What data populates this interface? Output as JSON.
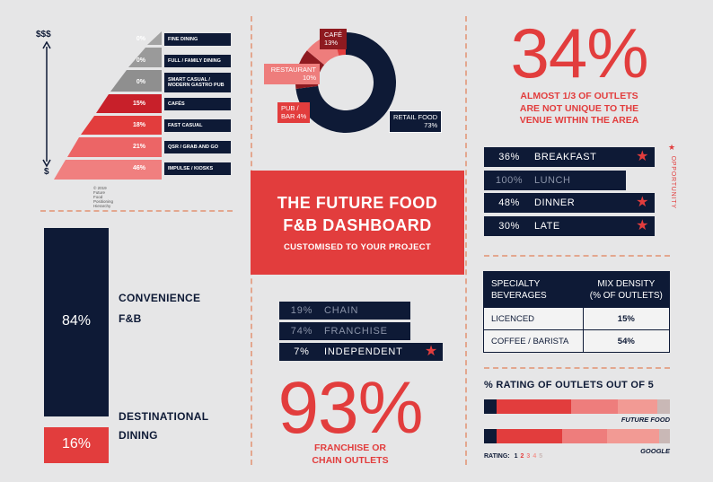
{
  "colors": {
    "navy": "#0e1a36",
    "red": "#e23d3d",
    "coral": "#ee7d7c",
    "grey": "#9a9a9a",
    "background": "#e6e6e7"
  },
  "pyramid": {
    "top_label": "$$$",
    "bottom_label": "$",
    "credit": "© 2019 Future Food Positioning Hierarchy",
    "tiers": [
      {
        "pct": "0%",
        "label": "Fine Dining"
      },
      {
        "pct": "0%",
        "label": "Full / Family Dining"
      },
      {
        "pct": "0%",
        "label_1": "Smart Casual /",
        "label_2": "Modern Gastro Pub"
      },
      {
        "pct": "15%",
        "label": "Cafés"
      },
      {
        "pct": "18%",
        "label": "Fast Casual"
      },
      {
        "pct": "21%",
        "label": "QSR / Grab and Go"
      },
      {
        "pct": "46%",
        "label": "Impulse / Kiosks"
      }
    ]
  },
  "chart_data": {
    "type": "pie",
    "title": "Venue type",
    "categories": [
      "Retail Food",
      "Café",
      "Restaurant",
      "Pub / Bar"
    ],
    "values": [
      73,
      13,
      10,
      4
    ],
    "labels": {
      "retail_1": "RETAIL FOOD",
      "retail_2": "73%",
      "cafe_1": "CAFÉ",
      "cafe_2": "13%",
      "restaurant_1": "RESTAURANT",
      "restaurant_2": "10%",
      "pub_1": "PUB /",
      "pub_2": "BAR 4%"
    }
  },
  "hero": {
    "title_1": "THE FUTURE FOOD",
    "title_2": "F&B DASHBOARD",
    "subtitle": "CUSTOMISED TO YOUR PROJECT"
  },
  "uniqueness": {
    "value": "34%",
    "caption_1": "ALMOST 1/3 OF OUTLETS",
    "caption_2": "ARE NOT UNIQUE TO THE",
    "caption_3": "VENUE WITHIN THE AREA"
  },
  "meals": {
    "opportunity_label": "OPPORTUNITY",
    "opportunity_star": "★",
    "rows": [
      {
        "pct": "36%",
        "label": "BREAKFAST",
        "star": "★"
      },
      {
        "pct": "100%",
        "label": "LUNCH",
        "star": ""
      },
      {
        "pct": "48%",
        "label": "DINNER",
        "star": "★"
      },
      {
        "pct": "30%",
        "label": "LATE",
        "star": "★"
      }
    ]
  },
  "offer": {
    "convenience_pct": "84%",
    "convenience_label_1": "CONVENIENCE",
    "convenience_label_2": "F&B",
    "destinational_pct": "16%",
    "destinational_label_1": "DESTINATIONAL",
    "destinational_label_2": "DINING",
    "convenience_value": 84,
    "destinational_value": 16
  },
  "ownership": {
    "rows": [
      {
        "pct": "19%",
        "label": "CHAIN",
        "star": ""
      },
      {
        "pct": "74%",
        "label": "FRANCHISE",
        "star": ""
      },
      {
        "pct": "7%",
        "label": "INDEPENDENT",
        "star": "★"
      }
    ],
    "big_value": "93%",
    "caption_1": "FRANCHISE OR",
    "caption_2": "CHAIN OUTLETS"
  },
  "mix_table": {
    "header_1a": "SPECIALTY",
    "header_1b": "BEVERAGES",
    "header_2a": "MIX DENSITY",
    "header_2b": "(% OF OUTLETS)",
    "rows": [
      {
        "label": "LICENCED",
        "value": "15%"
      },
      {
        "label": "COFFEE / BARISTA",
        "value": "54%"
      }
    ]
  },
  "ratings": {
    "title": "% RATING OF OUTLETS OUT OF 5",
    "rating_label": "RATING:",
    "scale": [
      "1",
      "2",
      "3",
      "4",
      "5"
    ],
    "scale_colors": [
      "#0e1a36",
      "#e23d3d",
      "#ee7d7c",
      "#f29a94",
      "#c9b8b6"
    ],
    "series": [
      {
        "name": "FUTURE FOOD",
        "values": [
          7,
          40,
          25,
          21,
          7
        ]
      },
      {
        "name": "GOOGLE",
        "values": [
          7,
          35,
          24,
          28,
          6
        ]
      }
    ]
  }
}
